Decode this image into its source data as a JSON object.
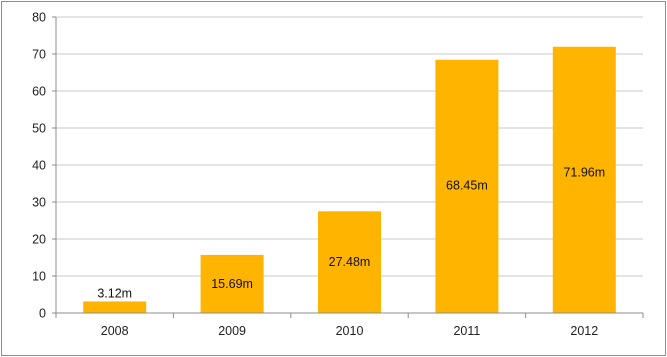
{
  "chart_data": {
    "type": "bar",
    "categories": [
      "2008",
      "2009",
      "2010",
      "2011",
      "2012"
    ],
    "values": [
      3.12,
      15.69,
      27.48,
      68.45,
      71.96
    ],
    "data_labels": [
      "3.12m",
      "15.69m",
      "27.48m",
      "68.45m",
      "71.96m"
    ],
    "y_ticks": [
      "0",
      "10",
      "20",
      "30",
      "40",
      "50",
      "60",
      "70",
      "80"
    ],
    "ylim": [
      0,
      80
    ],
    "grid": true,
    "legend": "none",
    "title": "",
    "xlabel": "",
    "ylabel": "",
    "bar_color": "#FFB400",
    "grid_color": "#c8c8c8",
    "axis_color": "#8c8c8c"
  }
}
